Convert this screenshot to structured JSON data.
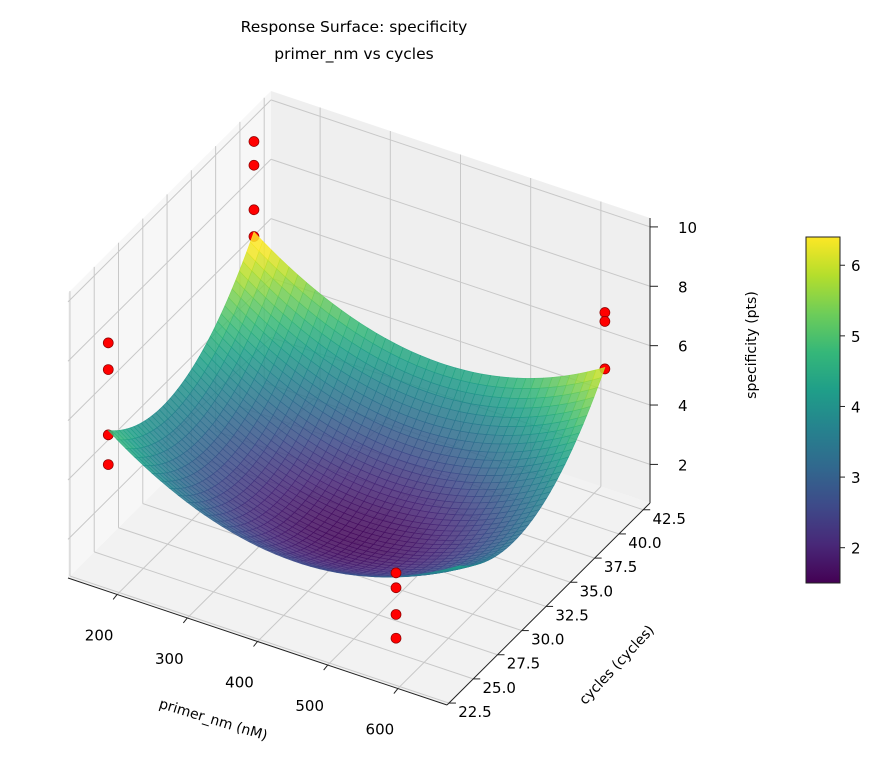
{
  "chart_data": {
    "type": "surface3d",
    "title": "Response Surface: specificity",
    "subtitle": "primer_nm vs cycles",
    "xlabel": "primer_nm (nM)",
    "ylabel": "cycles (cycles)",
    "zlabel": "specificity (pts)",
    "xlim": [
      130,
      670
    ],
    "ylim": [
      22.3,
      43.2
    ],
    "zlim": [
      0.7,
      10.3
    ],
    "xticks": [
      "200",
      "300",
      "400",
      "500",
      "600"
    ],
    "yticks": [
      "22.5",
      "25.0",
      "27.5",
      "30.0",
      "32.5",
      "35.0",
      "37.5",
      "40.0",
      "42.5"
    ],
    "zticks": [
      "2",
      "4",
      "6",
      "8",
      "10"
    ],
    "colormap": "viridis",
    "colorbar": {
      "range": [
        1.5,
        6.4
      ],
      "ticks": [
        "2",
        "3",
        "4",
        "5",
        "6"
      ]
    },
    "surface_range": {
      "x": [
        150,
        650
      ],
      "y": [
        25,
        40
      ],
      "z_min": 1.5,
      "z_max": 6.4
    },
    "points_color": "#ff0000",
    "points": [
      {
        "x": 150,
        "y": 40,
        "z": 9.8
      },
      {
        "x": 150,
        "y": 40,
        "z": 9.0
      },
      {
        "x": 150,
        "y": 40,
        "z": 7.5
      },
      {
        "x": 150,
        "y": 40,
        "z": 6.6
      },
      {
        "x": 150,
        "y": 25,
        "z": 7.9
      },
      {
        "x": 150,
        "y": 25,
        "z": 7.0
      },
      {
        "x": 150,
        "y": 25,
        "z": 4.8
      },
      {
        "x": 150,
        "y": 25,
        "z": 3.8
      },
      {
        "x": 560,
        "y": 25,
        "z": 3.4
      },
      {
        "x": 560,
        "y": 25,
        "z": 2.9
      },
      {
        "x": 560,
        "y": 25,
        "z": 2.0
      },
      {
        "x": 560,
        "y": 25,
        "z": 1.2
      },
      {
        "x": 650,
        "y": 40,
        "z": 8.0
      },
      {
        "x": 650,
        "y": 40,
        "z": 7.7
      },
      {
        "x": 650,
        "y": 40,
        "z": 6.1
      }
    ],
    "grid": true
  }
}
